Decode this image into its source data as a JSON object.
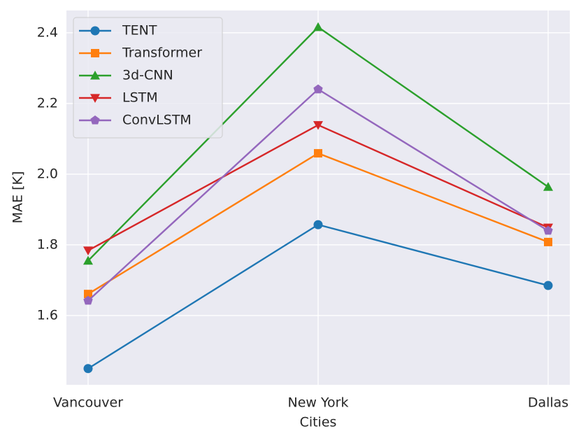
{
  "chart_data": {
    "type": "line",
    "x_label": "Cities",
    "y_label": "MAE [K]",
    "categories": [
      "Vancouver",
      "New York",
      "Dallas"
    ],
    "series": [
      {
        "name": "TENT",
        "color": "#1f77b4",
        "marker": "o",
        "values": [
          1.45,
          1.857,
          1.685
        ]
      },
      {
        "name": "Transformer",
        "color": "#ff7f0e",
        "marker": "s",
        "values": [
          1.661,
          2.059,
          1.808
        ]
      },
      {
        "name": "3d-CNN",
        "color": "#2ca02c",
        "marker": "^",
        "values": [
          1.755,
          2.416,
          1.964
        ]
      },
      {
        "name": "LSTM",
        "color": "#d62728",
        "marker": "v",
        "values": [
          1.784,
          2.139,
          1.849
        ]
      },
      {
        "name": "ConvLSTM",
        "color": "#9467bd",
        "marker": "p",
        "values": [
          1.642,
          2.24,
          1.84
        ]
      }
    ],
    "ylim": [
      1.404,
      2.463
    ],
    "yticks": [
      1.6,
      1.8,
      {
        "value": 2.0,
        "label": "2.0"
      },
      2.2,
      2.4
    ],
    "grid": true,
    "legend": "upper left"
  }
}
